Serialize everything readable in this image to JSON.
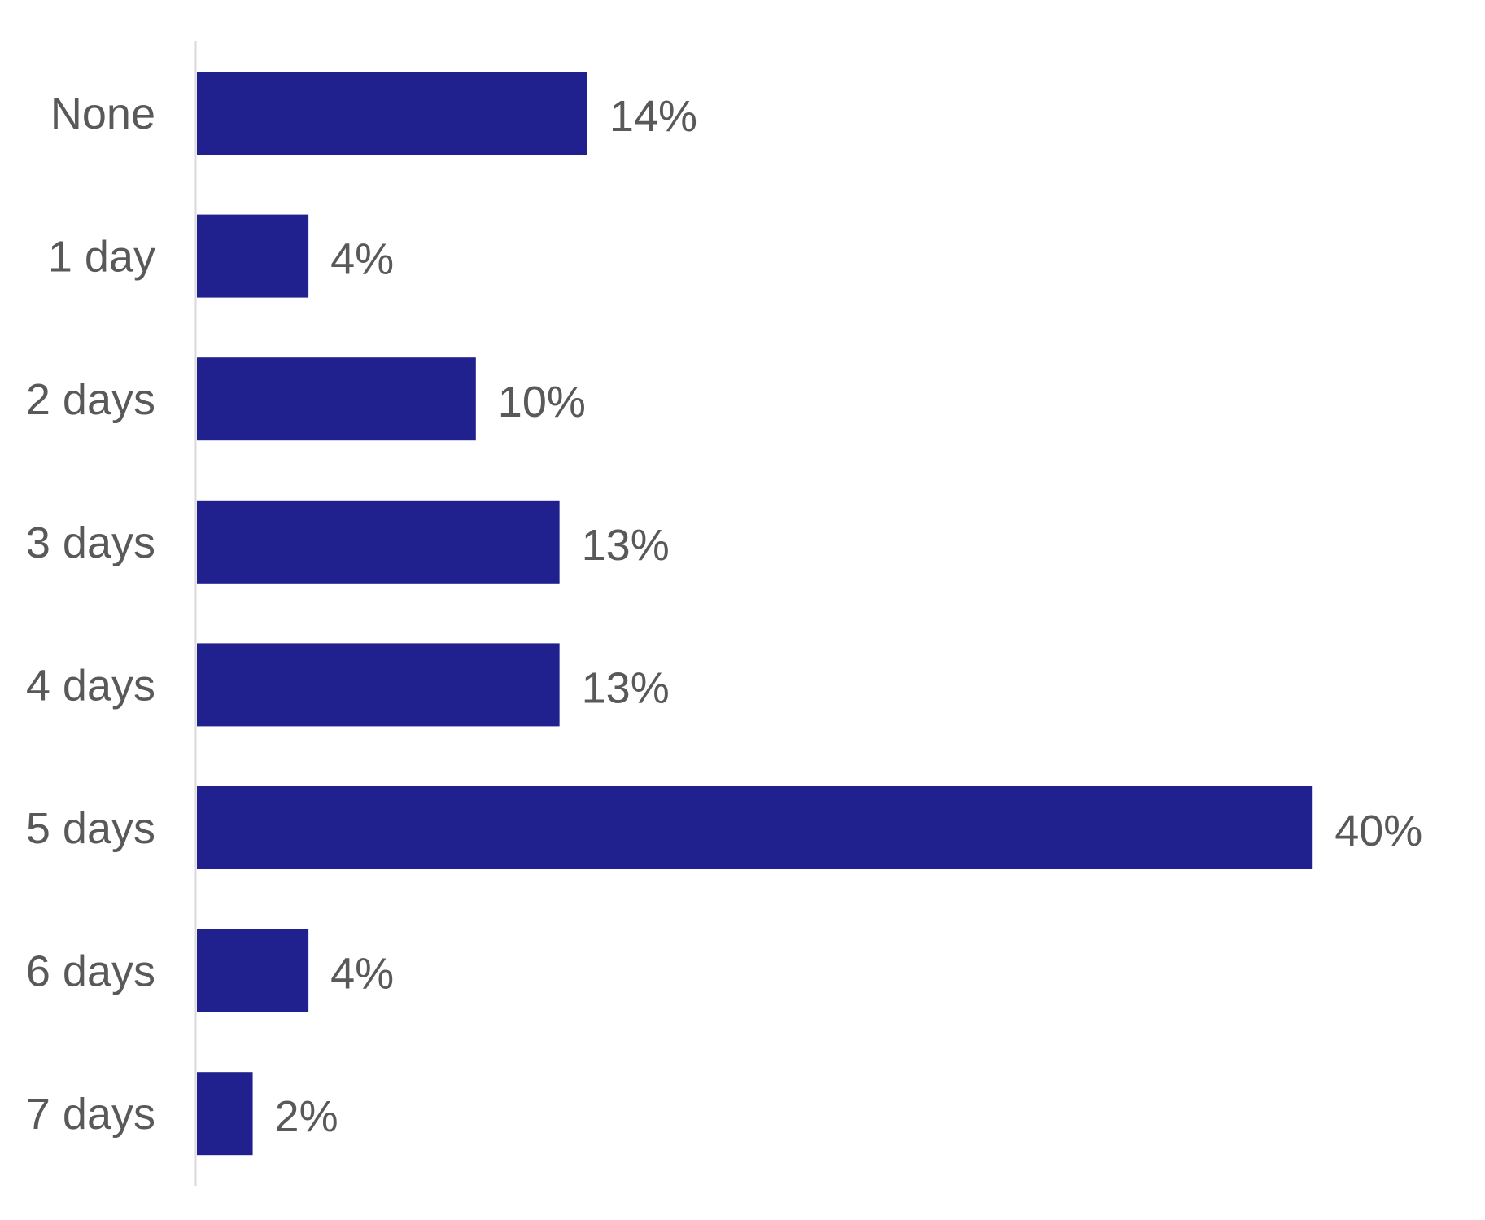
{
  "chart_data": {
    "type": "bar",
    "orientation": "horizontal",
    "title": "",
    "xlabel": "",
    "ylabel": "",
    "categories": [
      "None",
      "1 day",
      "2 days",
      "3 days",
      "4 days",
      "5 days",
      "6 days",
      "7 days"
    ],
    "values": [
      14,
      4,
      10,
      13,
      13,
      40,
      4,
      2
    ],
    "value_labels": [
      "14%",
      "4%",
      "10%",
      "13%",
      "13%",
      "40%",
      "4%",
      "2%"
    ],
    "unit": "%",
    "xlim": [
      0,
      40
    ],
    "grid": false,
    "legend": "none",
    "colors": {
      "bar": "#21208F",
      "text": "#595959",
      "axis": "#D9D9D9"
    }
  }
}
